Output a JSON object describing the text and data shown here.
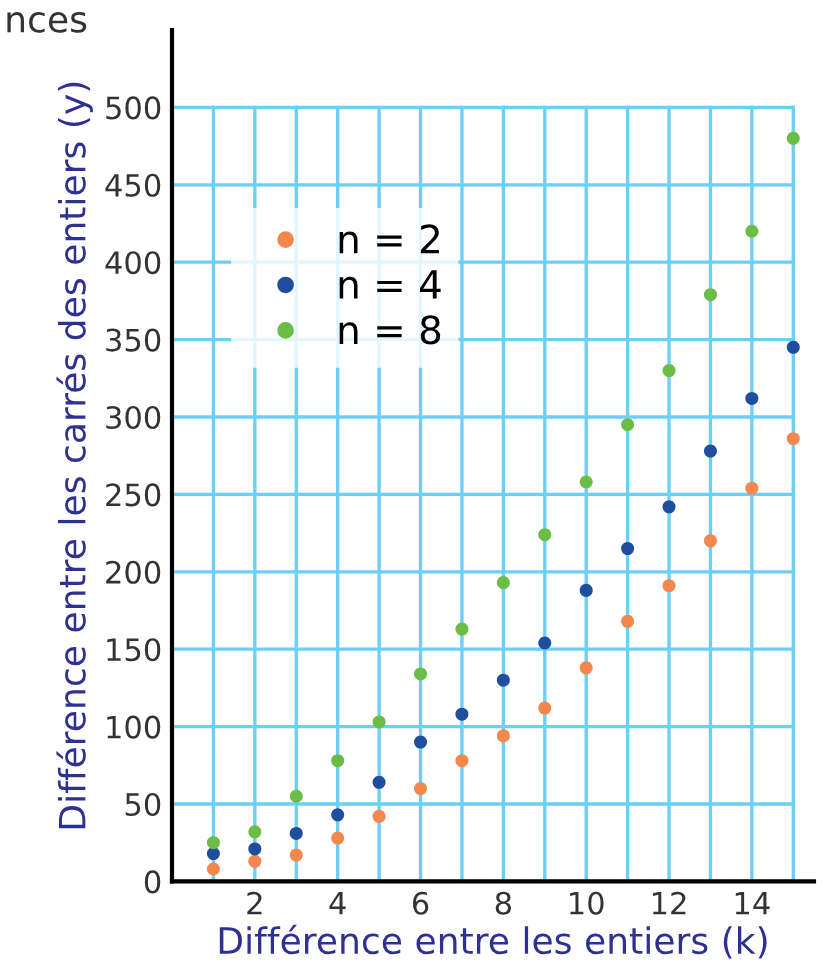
{
  "chart_data": {
    "type": "scatter",
    "xlabel": "Différence entre les entiers (k)",
    "ylabel": "Différence entre les carrés des entiers (y)",
    "annotations": [
      "nces"
    ],
    "x": [
      1,
      2,
      3,
      4,
      5,
      6,
      7,
      8,
      9,
      10,
      11,
      12,
      13,
      14,
      15
    ],
    "series": [
      {
        "name": "n = 2",
        "color": "#f4874b",
        "values": [
          8,
          13,
          17,
          28,
          42,
          60,
          78,
          94,
          112,
          138,
          168,
          191,
          220,
          254,
          286
        ]
      },
      {
        "name": "n = 4",
        "color": "#1f4e9e",
        "values": [
          18,
          21,
          31,
          43,
          64,
          90,
          108,
          130,
          154,
          188,
          215,
          242,
          278,
          312,
          345
        ]
      },
      {
        "name": "n = 8",
        "color": "#6cbd45",
        "values": [
          25,
          32,
          55,
          78,
          103,
          134,
          163,
          193,
          224,
          258,
          295,
          330,
          379,
          420,
          480
        ]
      }
    ],
    "xlim": [
      0,
      15.5
    ],
    "ylim": [
      0,
      550
    ],
    "xticks": [
      {
        "value": 1,
        "label": null
      },
      2,
      {
        "value": 3,
        "label": null
      },
      4,
      {
        "value": 5,
        "label": null
      },
      6,
      {
        "value": 7,
        "label": null
      },
      8,
      {
        "value": 9,
        "label": null
      },
      10,
      {
        "value": 11,
        "label": null
      },
      12,
      {
        "value": 13,
        "label": null
      },
      14,
      {
        "value": 15,
        "label": null
      }
    ],
    "yticks": [
      0,
      50,
      100,
      150,
      200,
      250,
      300,
      350,
      400,
      450,
      500
    ],
    "grid": true,
    "legend": "top left",
    "marker": "circle"
  }
}
